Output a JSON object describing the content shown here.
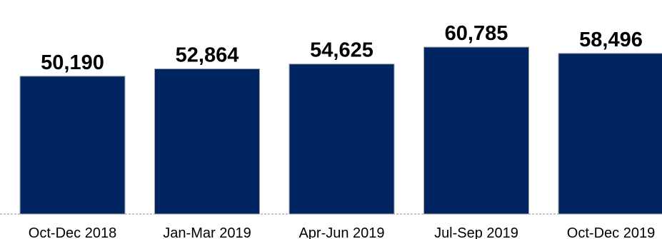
{
  "chart_data": {
    "type": "bar",
    "categories": [
      "Oct-Dec 2018",
      "Jan-Mar 2019",
      "Apr-Jun 2019",
      "Jul-Sep 2019",
      "Oct-Dec 2019"
    ],
    "values": [
      50190,
      52864,
      54625,
      60785,
      58496
    ],
    "value_labels": [
      "50,190",
      "52,864",
      "54,625",
      "60,785",
      "58,496"
    ],
    "title": "",
    "xlabel": "",
    "ylabel": "",
    "ylim": [
      0,
      70000
    ],
    "grid": false,
    "bar_color": "#002561"
  }
}
